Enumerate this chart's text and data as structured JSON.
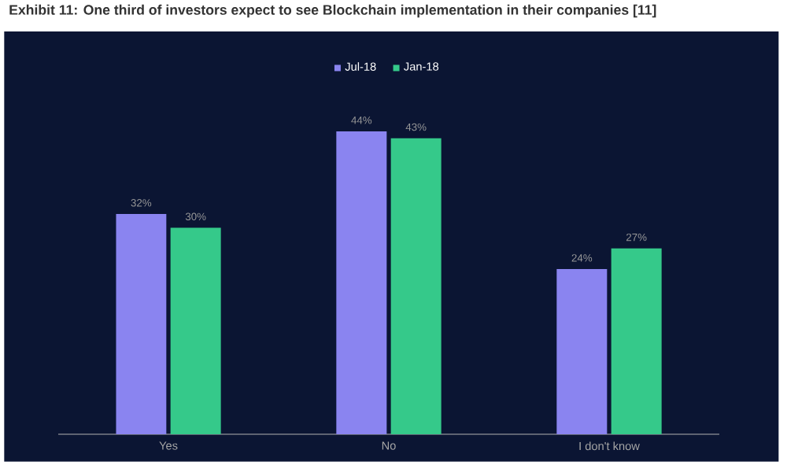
{
  "chart_data": {
    "type": "bar",
    "title": "Exhibit 11: One third of investors expect to see Blockchain implementation in their companies [11]",
    "categories": [
      "Yes",
      "No",
      "I don't know"
    ],
    "series": [
      {
        "name": "Jul-18",
        "color": "#8a84f0",
        "values": [
          32,
          44,
          24
        ],
        "value_labels": [
          "32%",
          "44%",
          "24%"
        ]
      },
      {
        "name": "Jan-18",
        "color": "#35c98a",
        "values": [
          30,
          43,
          27
        ],
        "value_labels": [
          "30%",
          "43%",
          "27%"
        ]
      }
    ],
    "legend": "top"
  }
}
